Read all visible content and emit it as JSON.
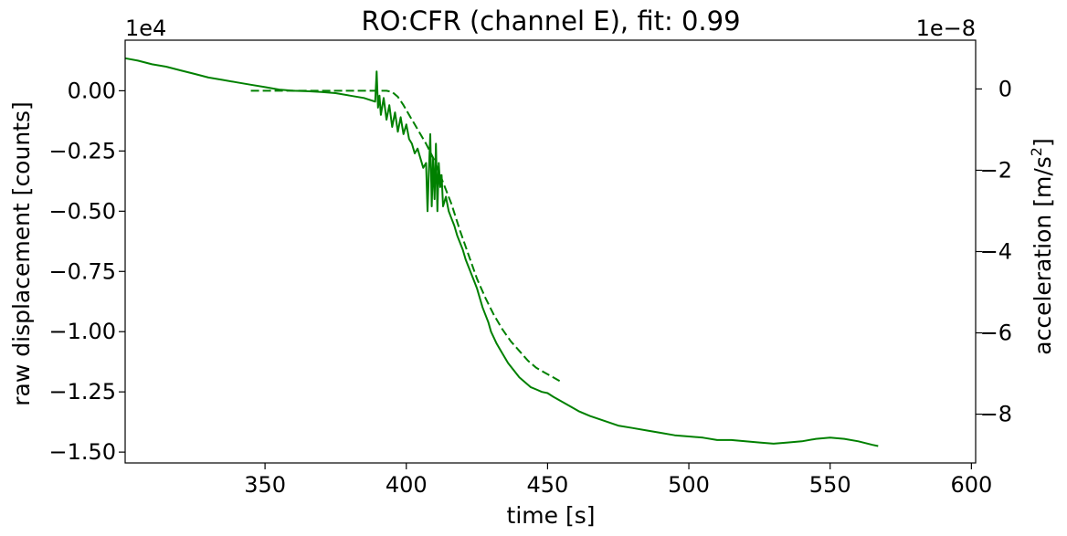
{
  "chart_data": {
    "type": "line",
    "title": "RO:CFR  (channel E), fit: 0.99",
    "xlabel": "time [s]",
    "ylabel_left": "raw displacement [counts]",
    "ylabel_right_main": "acceleration [m/s",
    "ylabel_right_sup": "2",
    "ylabel_right_tail": "]",
    "left_offset_label": "1e4",
    "right_offset_label": "1e−8",
    "xlim": [
      300.5,
      601.5
    ],
    "ylim_left": [
      -1.545,
      0.21
    ],
    "ylim_right": [
      -9.2,
      1.2
    ],
    "xticks": [
      {
        "value": 350,
        "label": "350"
      },
      {
        "value": 400,
        "label": "400"
      },
      {
        "value": 450,
        "label": "450"
      },
      {
        "value": 500,
        "label": "500"
      },
      {
        "value": 550,
        "label": "550"
      },
      {
        "value": 600,
        "label": "600"
      }
    ],
    "yticks_left": [
      {
        "value": 0.0,
        "label": "0.00"
      },
      {
        "value": -0.25,
        "label": "−0.25"
      },
      {
        "value": -0.5,
        "label": "−0.50"
      },
      {
        "value": -0.75,
        "label": "−0.75"
      },
      {
        "value": -1.0,
        "label": "−1.00"
      },
      {
        "value": -1.25,
        "label": "−1.25"
      },
      {
        "value": -1.5,
        "label": "−1.50"
      }
    ],
    "yticks_right": [
      {
        "value": 0,
        "label": "0"
      },
      {
        "value": -2,
        "label": "−2"
      },
      {
        "value": -4,
        "label": "−4"
      },
      {
        "value": -6,
        "label": "−6"
      },
      {
        "value": -8,
        "label": "−8"
      }
    ],
    "color": "#008000",
    "series": [
      {
        "style": "solid",
        "x": [
          300.5,
          305,
          310,
          315,
          320,
          325,
          330,
          335,
          340,
          345,
          350,
          355,
          360,
          365,
          370,
          375,
          380,
          385,
          389,
          389.5,
          390,
          390.5,
          391,
          392,
          393,
          394,
          395,
          396,
          397,
          398,
          399,
          400,
          401,
          402,
          403,
          404,
          405,
          406,
          407,
          407.5,
          408,
          408.5,
          409,
          409.5,
          410,
          410.5,
          411,
          411.5,
          412,
          412.5,
          413,
          414,
          415,
          416,
          417,
          418,
          419,
          420,
          421,
          422,
          423,
          424,
          425,
          426,
          427,
          428,
          429,
          430,
          432,
          434,
          436,
          438,
          440,
          442,
          444,
          446,
          448,
          450,
          452,
          455,
          458,
          461,
          465,
          470,
          475,
          480,
          485,
          490,
          495,
          500,
          505,
          510,
          515,
          520,
          525,
          530,
          535,
          540,
          545,
          550,
          555,
          560,
          565,
          567
        ],
        "y": [
          0.135,
          0.125,
          0.11,
          0.1,
          0.085,
          0.07,
          0.055,
          0.045,
          0.035,
          0.025,
          0.015,
          0.005,
          0.0,
          -0.002,
          -0.005,
          -0.01,
          -0.02,
          -0.03,
          -0.045,
          0.08,
          -0.07,
          -0.02,
          -0.1,
          -0.03,
          -0.12,
          -0.06,
          -0.15,
          -0.09,
          -0.17,
          -0.11,
          -0.18,
          -0.14,
          -0.2,
          -0.22,
          -0.26,
          -0.24,
          -0.28,
          -0.32,
          -0.3,
          -0.5,
          -0.33,
          -0.18,
          -0.48,
          -0.28,
          -0.45,
          -0.22,
          -0.5,
          -0.3,
          -0.4,
          -0.35,
          -0.48,
          -0.44,
          -0.5,
          -0.53,
          -0.56,
          -0.6,
          -0.63,
          -0.66,
          -0.7,
          -0.73,
          -0.76,
          -0.79,
          -0.82,
          -0.86,
          -0.9,
          -0.93,
          -0.96,
          -1.0,
          -1.05,
          -1.09,
          -1.13,
          -1.16,
          -1.19,
          -1.21,
          -1.23,
          -1.24,
          -1.25,
          -1.255,
          -1.27,
          -1.29,
          -1.31,
          -1.33,
          -1.35,
          -1.37,
          -1.39,
          -1.4,
          -1.41,
          -1.42,
          -1.43,
          -1.435,
          -1.44,
          -1.45,
          -1.45,
          -1.455,
          -1.46,
          -1.465,
          -1.46,
          -1.455,
          -1.445,
          -1.44,
          -1.445,
          -1.455,
          -1.47,
          -1.475
        ]
      },
      {
        "style": "dashed",
        "x": [
          345,
          360,
          375,
          390,
          393,
          395,
          397,
          399,
          401,
          403,
          405,
          407,
          410,
          413,
          416,
          419,
          422,
          425,
          428,
          431,
          434,
          437,
          440,
          443,
          446,
          449,
          452,
          455
        ],
        "y": [
          0.0,
          0.0,
          0.0,
          0.0,
          0.0,
          -0.005,
          -0.025,
          -0.06,
          -0.1,
          -0.14,
          -0.18,
          -0.22,
          -0.29,
          -0.38,
          -0.47,
          -0.58,
          -0.68,
          -0.78,
          -0.86,
          -0.93,
          -0.99,
          -1.04,
          -1.08,
          -1.12,
          -1.15,
          -1.17,
          -1.19,
          -1.21
        ]
      }
    ]
  }
}
